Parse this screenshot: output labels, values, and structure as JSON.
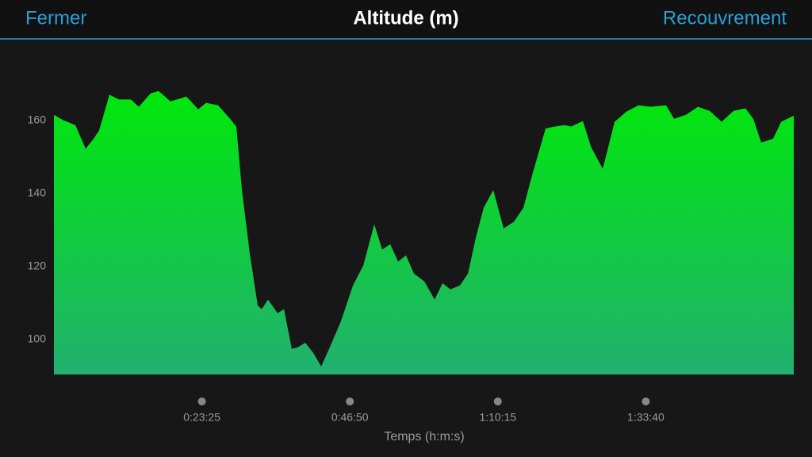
{
  "header": {
    "left_button": "Fermer",
    "right_button": "Recouvrement"
  },
  "chart_data": {
    "type": "area",
    "title": "Altitude (m)",
    "x_label": "Temps (h:m:s)",
    "color_top": "#00e80b",
    "color_bottom": "#22b070",
    "xlim": [
      0,
      7025
    ],
    "ylim": [
      90.4,
      176
    ],
    "xticks": [
      {
        "value": 1405,
        "label": "0:23:25"
      },
      {
        "value": 2810,
        "label": "0:46:50"
      },
      {
        "value": 4215,
        "label": "1:10:15"
      },
      {
        "value": 5620,
        "label": "1:33:40"
      }
    ],
    "yticks": [
      100,
      120,
      140,
      160
    ],
    "x": [
      0,
      90,
      203,
      301,
      377,
      429,
      527,
      617,
      730,
      806,
      919,
      994,
      1107,
      1258,
      1370,
      1446,
      1559,
      1672,
      1732,
      1785,
      1860,
      1935,
      1973,
      2033,
      2124,
      2184,
      2259,
      2312,
      2387,
      2462,
      2538,
      2613,
      2726,
      2839,
      2937,
      3042,
      3117,
      3193,
      3268,
      3343,
      3419,
      3517,
      3615,
      3690,
      3765,
      3855,
      3931,
      4006,
      4081,
      4172,
      4270,
      4367,
      4458,
      4548,
      4669,
      4759,
      4849,
      4910,
      5023,
      5098,
      5211,
      5324,
      5437,
      5550,
      5663,
      5813,
      5888,
      6001,
      6114,
      6227,
      6340,
      6453,
      6566,
      6641,
      6716,
      6829,
      6905,
      7025
    ],
    "values": [
      161.5,
      160,
      158.7,
      152.2,
      155,
      157.2,
      167,
      165.7,
      165.7,
      163.7,
      167.4,
      168,
      165.2,
      166.5,
      163,
      164.8,
      164.1,
      160.4,
      158.3,
      140.9,
      123.5,
      109.3,
      108.3,
      110.9,
      107.2,
      108.3,
      97.4,
      97.8,
      99.1,
      96.3,
      92.6,
      97.4,
      105,
      114.8,
      120.2,
      131.5,
      124.6,
      126.1,
      121.3,
      123,
      118,
      115.9,
      110.9,
      115.4,
      113.7,
      114.8,
      118,
      127.8,
      136.1,
      140.9,
      130.4,
      132.2,
      136.1,
      145.7,
      157.8,
      158.3,
      158.7,
      158.3,
      159.8,
      152.8,
      146.7,
      159.6,
      162.4,
      164.1,
      163.7,
      164.1,
      160.4,
      161.5,
      163.7,
      162.6,
      159.6,
      162.6,
      163.3,
      160.4,
      153.9,
      155,
      159.6,
      161.3
    ]
  }
}
